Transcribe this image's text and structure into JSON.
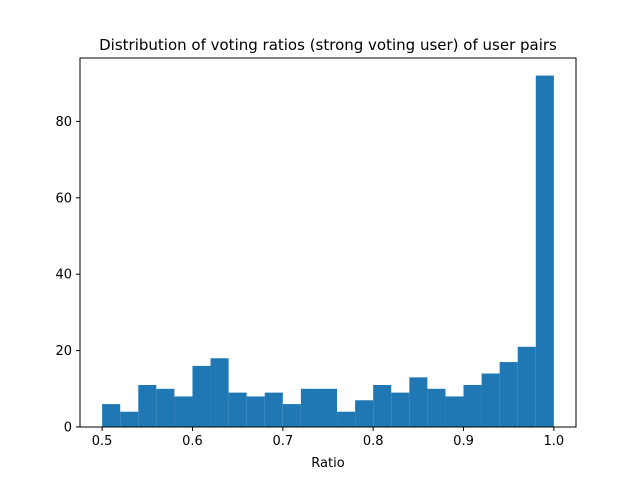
{
  "chart_data": {
    "type": "bar",
    "title": "Distribution of voting ratios (strong voting user) of user pairs",
    "xlabel": "Ratio",
    "ylabel": "",
    "bin_edges": [
      0.5,
      0.52,
      0.54,
      0.56,
      0.58,
      0.6,
      0.62,
      0.64,
      0.66,
      0.68,
      0.7,
      0.72,
      0.74,
      0.76,
      0.78,
      0.8,
      0.82,
      0.84,
      0.86,
      0.88,
      0.9,
      0.92,
      0.94,
      0.96,
      0.98,
      1.0
    ],
    "values": [
      6,
      4,
      11,
      10,
      8,
      16,
      18,
      9,
      8,
      9,
      6,
      10,
      10,
      4,
      7,
      11,
      9,
      13,
      10,
      8,
      11,
      14,
      17,
      21,
      92
    ],
    "xlim": [
      0.4755,
      1.0245
    ],
    "ylim": [
      0,
      96.6
    ],
    "xticks": [
      0.5,
      0.6,
      0.7,
      0.8,
      0.9,
      1.0
    ],
    "xtick_labels": [
      "0.5",
      "0.6",
      "0.7",
      "0.8",
      "0.9",
      "1.0"
    ],
    "yticks": [
      0,
      20,
      40,
      60,
      80
    ],
    "ytick_labels": [
      "0",
      "20",
      "40",
      "60",
      "80"
    ],
    "bar_color": "#1f77b4",
    "grid": false
  }
}
